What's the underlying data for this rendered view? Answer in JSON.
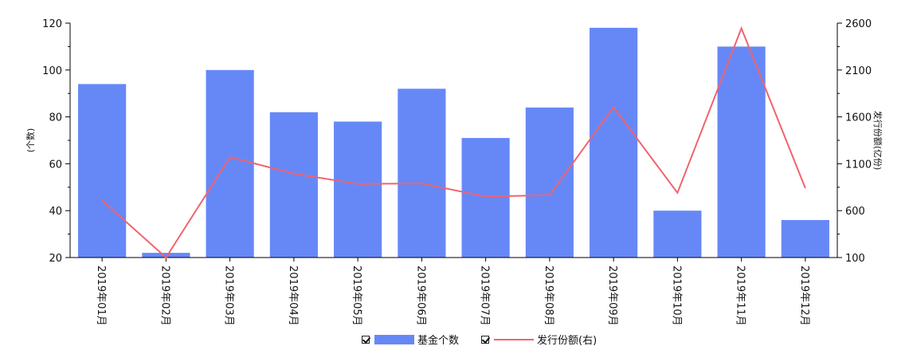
{
  "chart_data": {
    "type": "bar",
    "categories": [
      "2019年01月",
      "2019年02月",
      "2019年03月",
      "2019年04月",
      "2019年05月",
      "2019年06月",
      "2019年07月",
      "2019年08月",
      "2019年09月",
      "2019年10月",
      "2019年11月",
      "2019年12月"
    ],
    "series": [
      {
        "name": "基金个数",
        "type": "bar",
        "axis": "left",
        "color": "#6688F7",
        "values": [
          94,
          22,
          100,
          82,
          78,
          92,
          71,
          84,
          118,
          40,
          110,
          36
        ]
      },
      {
        "name": "发行份额(右)",
        "type": "line",
        "axis": "right",
        "color": "#F0636E",
        "values": [
          710,
          100,
          1170,
          995,
          885,
          890,
          750,
          765,
          1705,
          790,
          2545,
          840
        ]
      }
    ],
    "ylabel": "(个数)",
    "y2label": "发行份额(亿份)",
    "ylim": [
      20,
      120
    ],
    "y2lim": [
      100,
      2600
    ],
    "yticks": [
      20,
      40,
      60,
      80,
      100,
      120
    ],
    "y2ticks": [
      100,
      600,
      1100,
      1600,
      2100,
      2600
    ],
    "grid": false,
    "legend_position": "bottom-center"
  },
  "legend": [
    {
      "label": "基金个数",
      "checked": true
    },
    {
      "label": "发行份额(右)",
      "checked": true
    }
  ]
}
